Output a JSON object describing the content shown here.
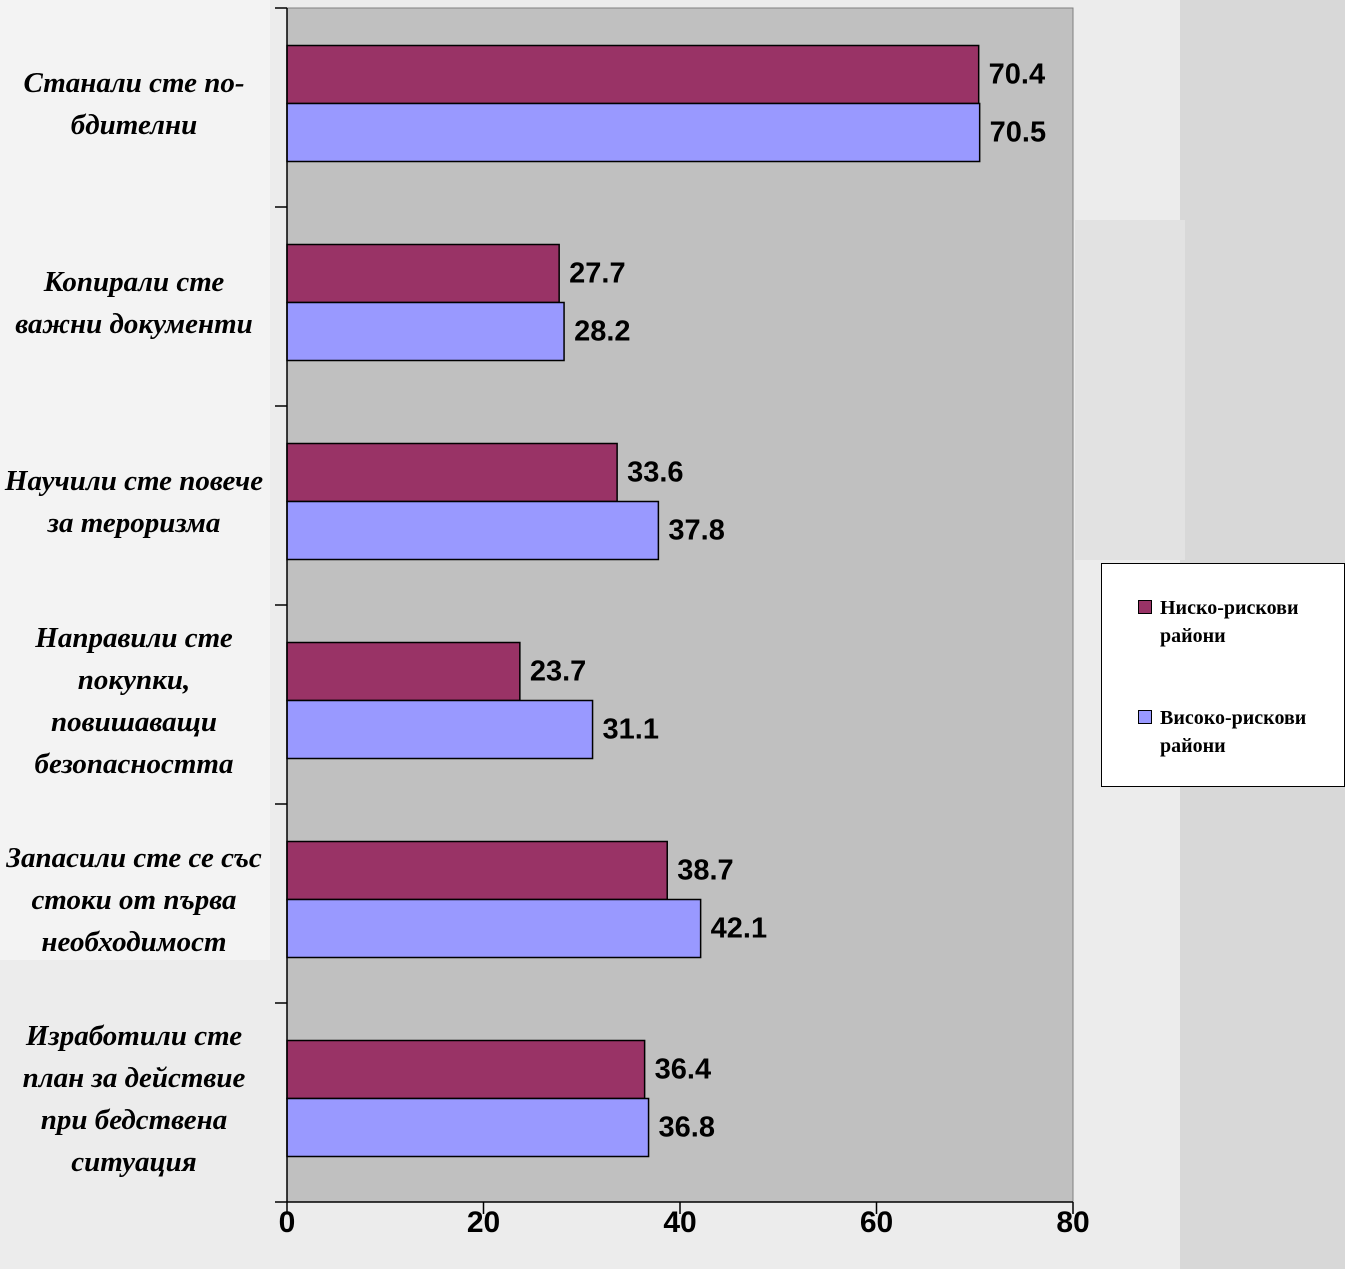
{
  "chart_data": {
    "type": "bar",
    "orientation": "horizontal",
    "categories": [
      "Станали сте по-бдителни",
      "Копирали сте важни документи",
      "Научили сте повече за тероризма",
      "Направили сте покупки, повишаващи безопасността",
      "Запасили сте се със стоки от първа необходимост",
      "Изработили сте план за действие при бедствена ситуация"
    ],
    "series": [
      {
        "name": "Ниско-рискови райони",
        "color": "#993366",
        "values": [
          70.4,
          27.7,
          33.6,
          23.7,
          38.7,
          36.4
        ],
        "labels": [
          "70.4",
          "27.7",
          "33.6",
          "23.7",
          "38.7",
          "36.4"
        ]
      },
      {
        "name": "Високо-рискови райони",
        "color": "#9999ff",
        "values": [
          70.5,
          28.2,
          37.8,
          31.1,
          42.1,
          36.8
        ],
        "labels": [
          "70.5",
          "28.2",
          "37.8",
          "31.1",
          "42.1",
          "36.8"
        ]
      }
    ],
    "xlim": [
      0,
      80
    ],
    "xticks": [
      "0",
      "20",
      "40",
      "60",
      "80"
    ],
    "title": "",
    "xlabel": "",
    "ylabel": "",
    "legend_position": "right",
    "plot_background": "#c0c0c0",
    "grid": false
  }
}
